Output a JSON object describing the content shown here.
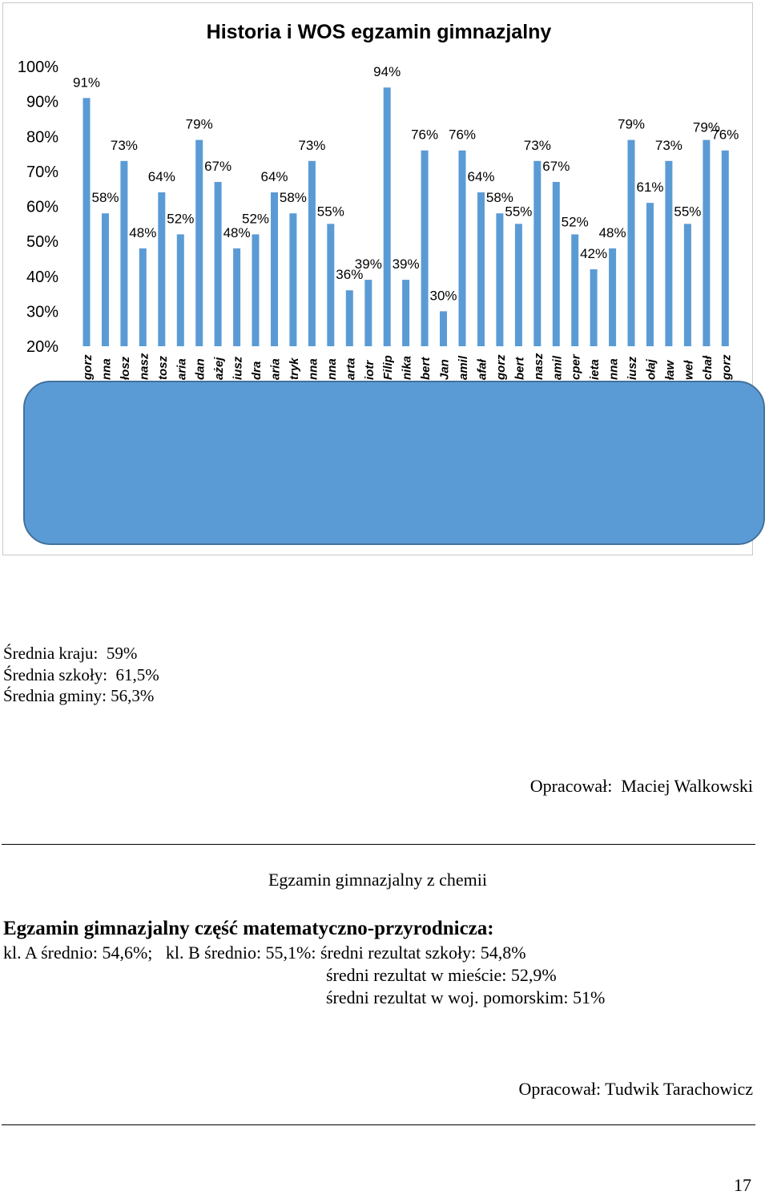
{
  "chart_data": {
    "type": "bar",
    "title": "Historia i WOS egzamin gimnazjalny",
    "ylim": [
      20,
      100
    ],
    "yticks": [
      "100%",
      "90%",
      "80%",
      "70%",
      "60%",
      "50%",
      "40%",
      "30%",
      "20%"
    ],
    "categories": [
      "gorz",
      "nna",
      "łosz",
      "nasz",
      "tosz",
      "aria",
      "dan",
      "ażej",
      "iusz",
      "dra",
      "aria",
      "tryk",
      "nna",
      "nna",
      "arta",
      "iotr",
      "Filip",
      "nika",
      "bert",
      "Jan",
      "amil",
      "afał",
      "gorz",
      "bert",
      "nasz",
      "amil",
      "cper",
      "ieta",
      "nna",
      "iusz",
      "ołaj",
      "ław",
      "weł",
      "chał",
      "gorz"
    ],
    "values": [
      91,
      58,
      73,
      48,
      64,
      52,
      79,
      67,
      48,
      52,
      64,
      58,
      73,
      55,
      36,
      39,
      94,
      39,
      76,
      30,
      76,
      64,
      58,
      55,
      73,
      67,
      52,
      42,
      48,
      79,
      61,
      73,
      55,
      79,
      76
    ],
    "labels": [
      "91%",
      "58%",
      "73%",
      "48%",
      "64%",
      "52%",
      "79%",
      "67%",
      "48%",
      "52%",
      "64%",
      "58%",
      "73%",
      "55%",
      "36%",
      "39%",
      "94%",
      "39%",
      "76%",
      "30%",
      "76%",
      "64%",
      "58%",
      "55%",
      "73%",
      "67%",
      "52%",
      "42%",
      "48%",
      "79%",
      "61%",
      "73%",
      "55%",
      "79%",
      "76%"
    ],
    "bar_color": "#5b9bd5",
    "grid": false,
    "legend": "none"
  },
  "averages": {
    "country": "Średnia kraju:  59%",
    "school": "Średnia szkoły:  61,5%",
    "commune": "Średnia gminy: 56,3%"
  },
  "author1": "Opracował:  Maciej Walkowski",
  "chem_title": "Egzamin gimnazjalny z chemii",
  "math_heading": "Egzamin gimnazjalny część matematyczno-przyrodnicza:",
  "math_line1": "kl. A średnio: 54,6%;   kl. B średnio: 55,1%: średni rezultat szkoły: 54,8%",
  "math_line2": "średni rezultat w mieście: 52,9%",
  "math_line3": "średni rezultat w woj. pomorskim: 51%",
  "author2": "Opracował: Tudwik Tarachowicz",
  "page_number": "17",
  "colors": {
    "bar": "#5b9bd5",
    "overlay": "#5b9bd5",
    "overlay_border": "#41719c"
  }
}
